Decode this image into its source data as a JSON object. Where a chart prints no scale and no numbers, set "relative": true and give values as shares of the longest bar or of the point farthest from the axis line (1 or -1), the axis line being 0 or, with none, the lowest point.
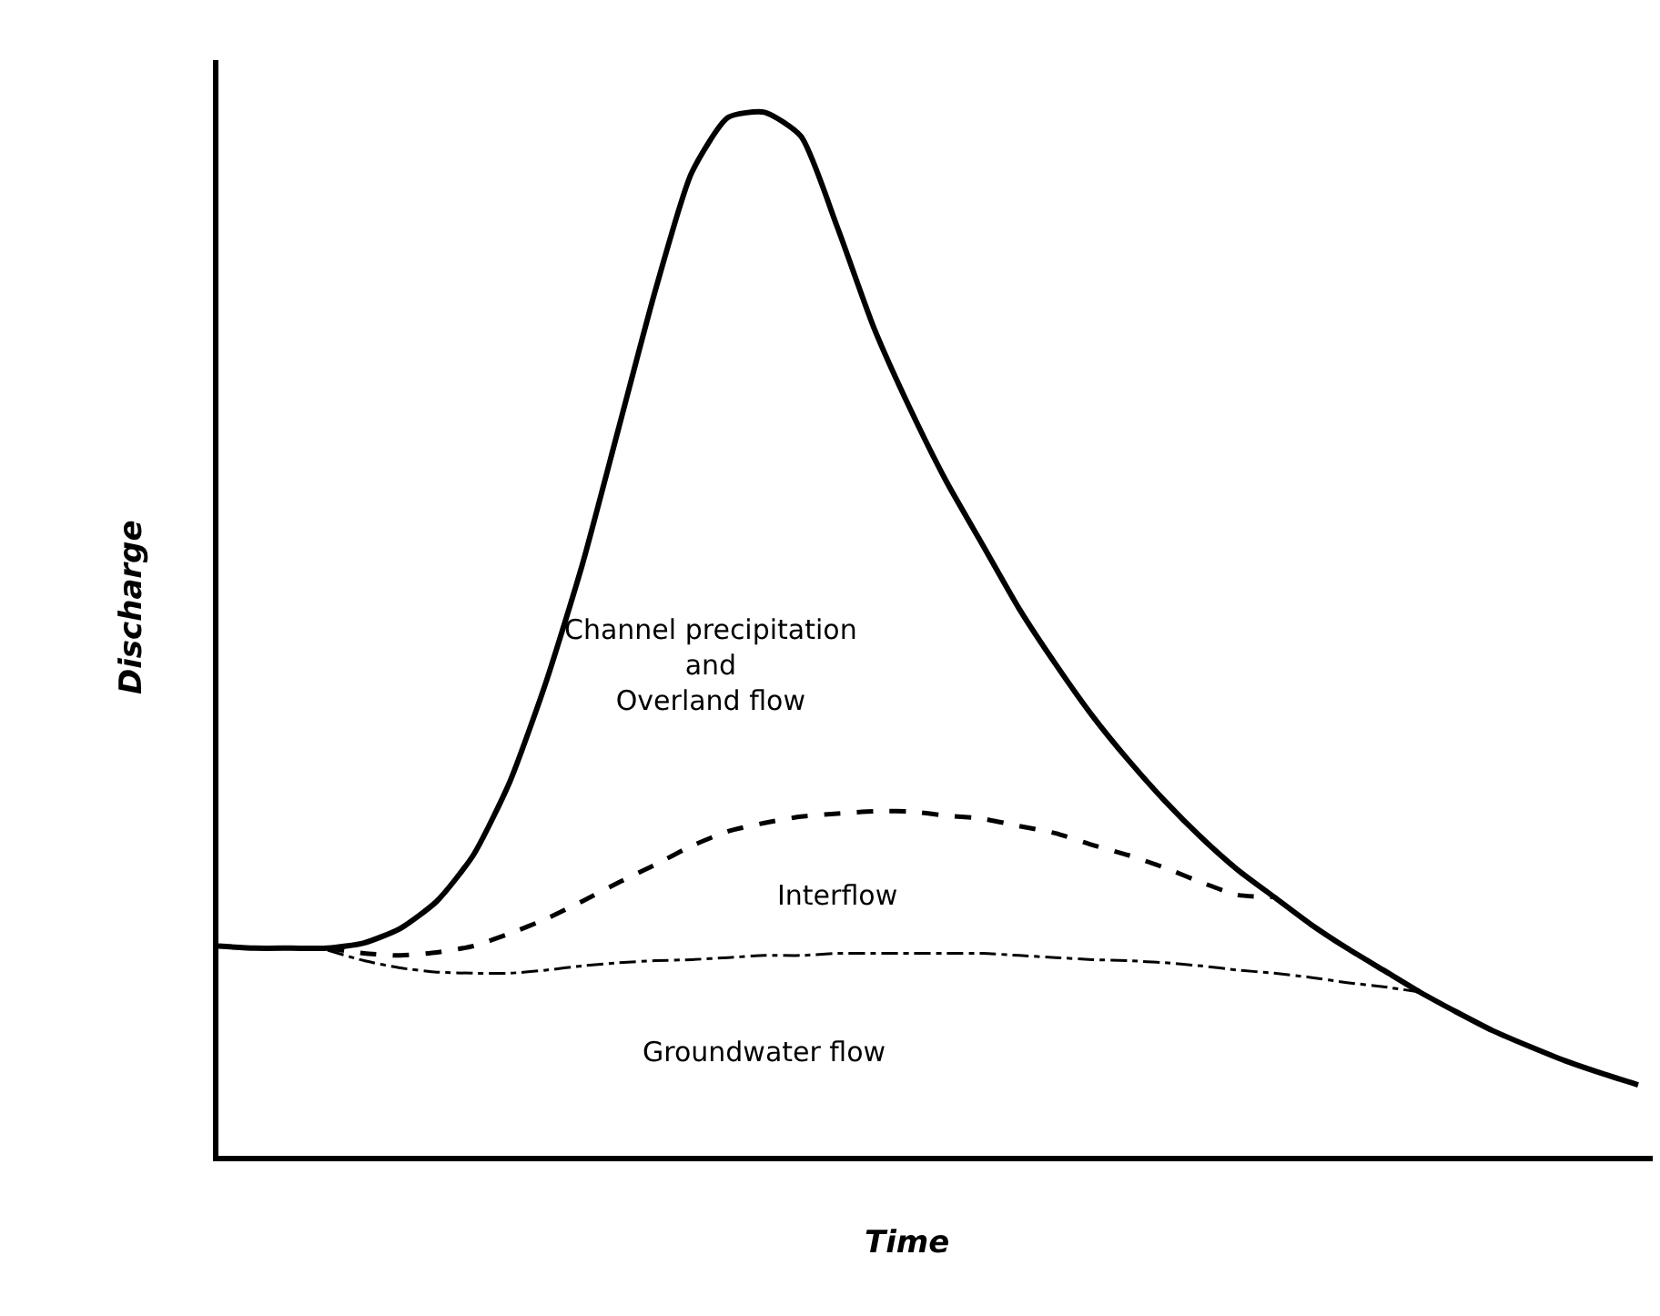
{
  "chart_data": {
    "type": "line",
    "xlabel": "Time",
    "ylabel": "Discharge",
    "relative": true,
    "marker": "none",
    "categories": [
      null,
      null,
      null,
      null,
      null,
      null,
      null,
      null,
      null,
      null,
      null,
      null,
      null,
      null,
      null,
      null,
      null,
      null,
      null,
      null,
      null,
      null,
      null,
      null,
      null,
      null,
      null,
      null,
      null,
      null,
      null,
      null,
      null,
      null,
      null,
      null,
      null,
      null,
      null,
      null
    ],
    "series": [
      {
        "color": "#000000",
        "line_style": "solid",
        "values": [
          0.201,
          0.199,
          0.199,
          0.199,
          0.204,
          0.218,
          0.244,
          0.288,
          0.358,
          0.454,
          0.567,
          0.698,
          0.829,
          0.942,
          0.995,
          1,
          0.977,
          0.89,
          0.794,
          0.716,
          0.646,
          0.585,
          0.524,
          0.471,
          0.422,
          0.379,
          0.34,
          0.305,
          0.274,
          0.248,
          0.222,
          0.199,
          0.178,
          0.157,
          0.138,
          0.12,
          0.105,
          0.091,
          0.079,
          0.068
        ]
      },
      {
        "color": "#000000",
        "line_style": "dashed",
        "values": [
          null,
          null,
          null,
          0.199,
          0.194,
          0.192,
          0.195,
          0.201,
          0.213,
          0.227,
          0.244,
          0.262,
          0.279,
          0.297,
          0.311,
          0.319,
          0.325,
          0.328,
          0.33,
          0.33,
          0.326,
          0.323,
          0.316,
          0.309,
          0.298,
          0.288,
          0.276,
          0.262,
          0.25,
          0.248,
          null,
          null,
          null,
          null,
          null,
          null,
          null,
          null,
          null,
          null
        ]
      },
      {
        "color": "#000000",
        "line_style": "dashdot",
        "values": [
          null,
          null,
          null,
          0.197,
          0.187,
          0.18,
          0.176,
          0.175,
          0.175,
          0.178,
          0.182,
          0.185,
          0.187,
          0.188,
          0.19,
          0.192,
          0.192,
          0.194,
          0.194,
          0.194,
          0.194,
          0.194,
          0.192,
          0.19,
          0.188,
          0.187,
          0.185,
          0.182,
          0.178,
          0.175,
          0.171,
          0.166,
          0.162,
          0.157,
          null,
          null,
          null,
          null,
          null,
          null
        ]
      }
    ],
    "annotations": [
      "Channel precipitation\nand\nOverland flow",
      "Interflow",
      "Groundwater flow"
    ]
  }
}
